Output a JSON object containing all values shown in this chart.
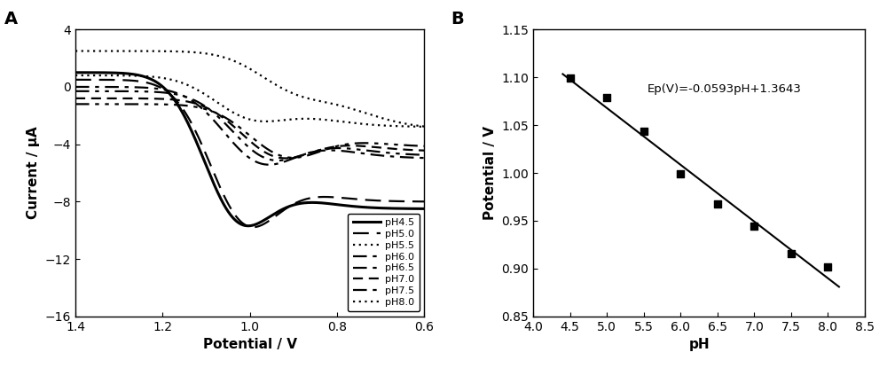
{
  "panel_A": {
    "xlabel": "Potential / V",
    "ylabel": "Current / μA",
    "xlim": [
      1.4,
      0.6
    ],
    "ylim": [
      -16,
      4
    ],
    "xticks": [
      1.4,
      1.2,
      1.0,
      0.8,
      0.6
    ],
    "yticks": [
      -16,
      -12,
      -8,
      -4,
      0,
      4
    ]
  },
  "panel_B": {
    "xlabel": "pH",
    "ylabel": "Potential / V",
    "xlim": [
      4.0,
      8.5
    ],
    "ylim": [
      0.85,
      1.15
    ],
    "xticks": [
      4.0,
      4.5,
      5.0,
      5.5,
      6.0,
      6.5,
      7.0,
      7.5,
      8.0,
      8.5
    ],
    "yticks": [
      0.85,
      0.9,
      0.95,
      1.0,
      1.05,
      1.1,
      1.15
    ],
    "scatter_x": [
      4.5,
      5.0,
      5.5,
      6.0,
      6.5,
      7.0,
      7.5,
      8.0
    ],
    "scatter_y": [
      1.099,
      1.079,
      1.044,
      0.999,
      0.968,
      0.944,
      0.916,
      0.902
    ],
    "slope": -0.0593,
    "intercept": 1.3643,
    "equation": "Ep(V)=-0.0593pH+1.3643",
    "eq_x": 5.55,
    "eq_y": 1.088
  }
}
